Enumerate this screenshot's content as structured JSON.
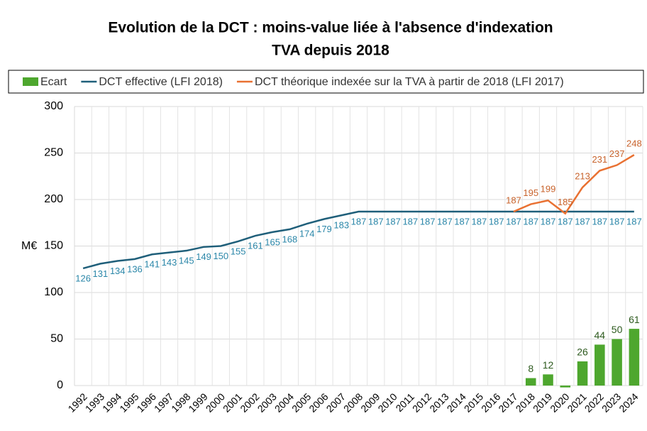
{
  "chart_data": {
    "type": "bar_line",
    "title": [
      "Evolution de la DCT : moins-value liée à l'absence d'indexation",
      "TVA depuis 2018"
    ],
    "ylabel": "M€",
    "categories": [
      "1992",
      "1993",
      "1994",
      "1995",
      "1996",
      "1997",
      "1998",
      "1999",
      "2000",
      "2001",
      "2002",
      "2003",
      "2004",
      "2005",
      "2006",
      "2007",
      "2008",
      "2009",
      "2010",
      "2011",
      "2012",
      "2013",
      "2014",
      "2015",
      "2016",
      "2017",
      "2018",
      "2019",
      "2020",
      "2021",
      "2022",
      "2023",
      "2024"
    ],
    "series": [
      {
        "name": "Ecart",
        "type": "bar",
        "color": "#4ea72e",
        "values": [
          null,
          null,
          null,
          null,
          null,
          null,
          null,
          null,
          null,
          null,
          null,
          null,
          null,
          null,
          null,
          null,
          null,
          null,
          null,
          null,
          null,
          null,
          null,
          null,
          null,
          null,
          8,
          12,
          -2,
          26,
          44,
          50,
          61
        ],
        "value_labels": [
          null,
          null,
          null,
          null,
          null,
          null,
          null,
          null,
          null,
          null,
          null,
          null,
          null,
          null,
          null,
          null,
          null,
          null,
          null,
          null,
          null,
          null,
          null,
          null,
          null,
          null,
          "8",
          "12",
          null,
          "26",
          "44",
          "50",
          "61"
        ]
      },
      {
        "name": "DCT effective (LFI 2018)",
        "type": "line",
        "color": "#1f5f7a",
        "label_color": "#2a86a8",
        "label_pos": "below",
        "values": [
          126,
          131,
          134,
          136,
          141,
          143,
          145,
          149,
          150,
          155,
          161,
          165,
          168,
          174,
          179,
          183,
          187,
          187,
          187,
          187,
          187,
          187,
          187,
          187,
          187,
          187,
          187,
          187,
          187,
          187,
          187,
          187,
          187
        ]
      },
      {
        "name": "DCT théorique indexée sur la TVA à partir de 2018 (LFI 2017)",
        "type": "line",
        "color": "#e97132",
        "label_color": "#c8632c",
        "label_pos": "above",
        "values": [
          null,
          null,
          null,
          null,
          null,
          null,
          null,
          null,
          null,
          null,
          null,
          null,
          null,
          null,
          null,
          null,
          null,
          null,
          null,
          null,
          null,
          null,
          null,
          null,
          null,
          187,
          195,
          199,
          185,
          213,
          231,
          237,
          248
        ]
      }
    ],
    "ylim": [
      0,
      300
    ],
    "yticks": [
      0,
      50,
      100,
      150,
      200,
      250,
      300
    ],
    "grid": true
  }
}
